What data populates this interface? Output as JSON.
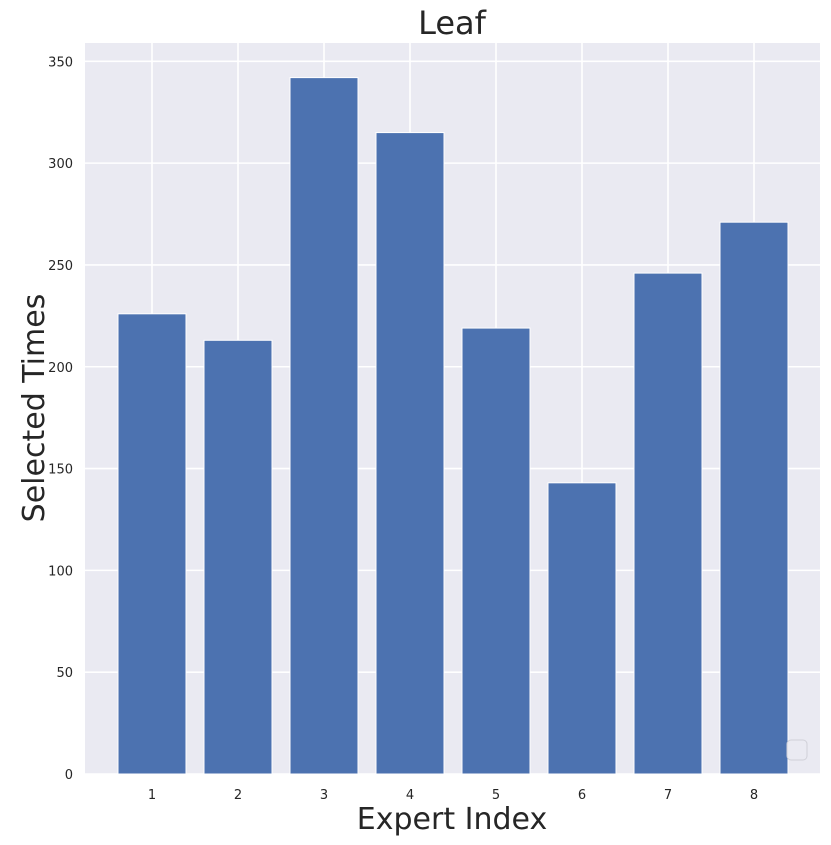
{
  "chart_data": {
    "type": "bar",
    "title": "Leaf",
    "xlabel": "Expert Index",
    "ylabel": "Selected Times",
    "categories": [
      "1",
      "2",
      "3",
      "4",
      "5",
      "6",
      "7",
      "8"
    ],
    "values": [
      226,
      213,
      342,
      315,
      219,
      143,
      246,
      271
    ],
    "ylim": [
      0,
      359
    ],
    "yticks": [
      0,
      50,
      100,
      150,
      200,
      250,
      300,
      350
    ],
    "grid": true,
    "legend": "bottom-right (empty)",
    "colors": {
      "bar": "#4c72b0",
      "plot_background": "#eaeaf2",
      "grid": "#ffffff",
      "text": "#262626"
    }
  }
}
